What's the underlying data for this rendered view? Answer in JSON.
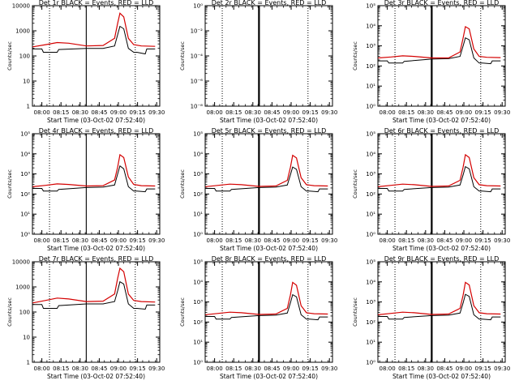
{
  "x_tick_labels": [
    "08:00",
    "08:15",
    "08:30",
    "08:45",
    "09:00",
    "09:15",
    "09:30"
  ],
  "x_tick_hours": [
    8.0,
    8.25,
    8.5,
    8.75,
    9.0,
    9.25,
    9.5
  ],
  "x_range": [
    7.877,
    9.54
  ],
  "solid_line_hour": 8.58,
  "dotted_line_hours": [
    8.1,
    9.22
  ],
  "colors": {
    "events": "#000000",
    "lld": "#d40000"
  },
  "chart_data": [
    {
      "type": "line",
      "title": "Det 1r BLACK = Events, RED = LLD",
      "xlabel": "Start Time (03-Oct-02 07:52:40)",
      "ylabel": "Counts/sec",
      "yscale": "log",
      "ylim": [
        1,
        10000
      ],
      "ytick_labels": [
        "1",
        "10",
        "100",
        "1000",
        "10000"
      ],
      "solid_weight": "thin",
      "series": [
        {
          "name": "Events",
          "x": [
            7.88,
            8.0,
            8.02,
            8.2,
            8.22,
            8.58,
            8.8,
            8.95,
            8.99,
            9.02,
            9.07,
            9.13,
            9.2,
            9.24,
            9.35,
            9.37,
            9.48
          ],
          "y": [
            190,
            190,
            140,
            140,
            180,
            200,
            200,
            250,
            700,
            1500,
            1200,
            200,
            140,
            140,
            120,
            190,
            190
          ]
        },
        {
          "name": "LLD",
          "x": [
            7.88,
            8.05,
            8.2,
            8.35,
            8.58,
            8.8,
            8.95,
            8.99,
            9.02,
            9.07,
            9.13,
            9.2,
            9.3,
            9.48
          ],
          "y": [
            230,
            280,
            340,
            320,
            250,
            260,
            500,
            2000,
            5000,
            3600,
            500,
            280,
            250,
            240
          ]
        }
      ]
    },
    {
      "type": "line",
      "title": "Det 2r BLACK = Events, RED = LLD",
      "xlabel": "Start Time (03-Oct-02 07:52:40)",
      "ylabel": "Counts/sec",
      "yscale": "log",
      "ylim": [
        1,
        1e-08
      ],
      "ytick_labels": [
        "10⁻⁸",
        "10⁻⁶",
        "10⁻⁴",
        "10⁻²",
        "10⁰"
      ],
      "solid_weight": "thick",
      "series": [
        {
          "name": "Events",
          "x": [
            7.88,
            7.93
          ],
          "y": [
            1,
            1
          ]
        },
        {
          "name": "LLD",
          "x": [],
          "y": []
        }
      ]
    },
    {
      "type": "line",
      "title": "Det 3r BLACK = Events, RED = LLD",
      "xlabel": "Start Time (03-Oct-02 07:52:40)",
      "ylabel": "Counts/sec",
      "yscale": "log",
      "ylim": [
        1,
        100000
      ],
      "ytick_labels": [
        "10⁰",
        "10¹",
        "10²",
        "10³",
        "10⁴",
        "10⁵"
      ],
      "solid_weight": "thick",
      "series": [
        {
          "name": "Events",
          "x": [
            7.88,
            8.0,
            8.02,
            8.2,
            8.22,
            8.58,
            8.8,
            8.95,
            8.99,
            9.02,
            9.07,
            9.13,
            9.2,
            9.24,
            9.35,
            9.37,
            9.48
          ],
          "y": [
            180,
            180,
            140,
            140,
            170,
            220,
            230,
            300,
            1000,
            2500,
            2000,
            250,
            140,
            140,
            130,
            180,
            180
          ]
        },
        {
          "name": "LLD",
          "x": [
            7.88,
            8.05,
            8.2,
            8.35,
            8.58,
            8.8,
            8.95,
            8.99,
            9.02,
            9.07,
            9.13,
            9.2,
            9.3,
            9.48
          ],
          "y": [
            250,
            280,
            320,
            300,
            250,
            250,
            500,
            2500,
            9000,
            7000,
            700,
            300,
            270,
            260
          ]
        }
      ]
    },
    {
      "type": "line",
      "title": "Det 4r BLACK = Events, RED = LLD",
      "xlabel": "Start Time (03-Oct-02 07:52:40)",
      "ylabel": "Counts/sec",
      "yscale": "log",
      "ylim": [
        1,
        100000
      ],
      "ytick_labels": [
        "10⁰",
        "10¹",
        "10²",
        "10³",
        "10⁴",
        "10⁵"
      ],
      "solid_weight": "thin",
      "series": [
        {
          "name": "Events",
          "x": [
            7.88,
            8.0,
            8.02,
            8.2,
            8.22,
            8.58,
            8.8,
            8.95,
            8.99,
            9.02,
            9.07,
            9.13,
            9.2,
            9.24,
            9.35,
            9.37,
            9.48
          ],
          "y": [
            190,
            190,
            140,
            140,
            170,
            210,
            220,
            280,
            1000,
            2500,
            1800,
            230,
            140,
            140,
            130,
            180,
            180
          ]
        },
        {
          "name": "LLD",
          "x": [
            7.88,
            8.05,
            8.2,
            8.35,
            8.58,
            8.8,
            8.95,
            8.99,
            9.02,
            9.07,
            9.13,
            9.2,
            9.3,
            9.48
          ],
          "y": [
            230,
            270,
            320,
            300,
            250,
            260,
            500,
            2200,
            9000,
            6500,
            700,
            300,
            260,
            250
          ]
        }
      ]
    },
    {
      "type": "line",
      "title": "Det 5r BLACK = Events, RED = LLD",
      "xlabel": "Start Time (03-Oct-02 07:52:40)",
      "ylabel": "Counts/sec",
      "yscale": "log",
      "ylim": [
        1,
        100000
      ],
      "ytick_labels": [
        "10⁰",
        "10¹",
        "10²",
        "10³",
        "10⁴",
        "10⁵"
      ],
      "solid_weight": "thick",
      "series": [
        {
          "name": "Events",
          "x": [
            7.88,
            8.0,
            8.02,
            8.2,
            8.22,
            8.58,
            8.8,
            8.95,
            8.99,
            9.02,
            9.07,
            9.13,
            9.2,
            9.24,
            9.35,
            9.37,
            9.48
          ],
          "y": [
            190,
            190,
            140,
            140,
            170,
            210,
            220,
            280,
            900,
            2200,
            1700,
            230,
            140,
            140,
            130,
            180,
            180
          ]
        },
        {
          "name": "LLD",
          "x": [
            7.88,
            8.05,
            8.2,
            8.35,
            8.58,
            8.8,
            8.95,
            8.99,
            9.02,
            9.07,
            9.13,
            9.2,
            9.3,
            9.48
          ],
          "y": [
            230,
            270,
            310,
            290,
            240,
            250,
            480,
            2100,
            8500,
            6200,
            650,
            290,
            260,
            250
          ]
        }
      ]
    },
    {
      "type": "line",
      "title": "Det 6r BLACK = Events, RED = LLD",
      "xlabel": "Start Time (03-Oct-02 07:52:40)",
      "ylabel": "Counts/sec",
      "yscale": "log",
      "ylim": [
        1,
        100000
      ],
      "ytick_labels": [
        "10⁰",
        "10¹",
        "10²",
        "10³",
        "10⁴",
        "10⁵"
      ],
      "solid_weight": "thick",
      "series": [
        {
          "name": "Events",
          "x": [
            7.88,
            8.0,
            8.02,
            8.2,
            8.22,
            8.58,
            8.8,
            8.95,
            8.99,
            9.02,
            9.07,
            9.13,
            9.2,
            9.24,
            9.35,
            9.37,
            9.48
          ],
          "y": [
            190,
            190,
            140,
            140,
            170,
            210,
            220,
            280,
            900,
            2300,
            1800,
            230,
            140,
            140,
            130,
            180,
            180
          ]
        },
        {
          "name": "LLD",
          "x": [
            7.88,
            8.05,
            8.2,
            8.35,
            8.58,
            8.8,
            8.95,
            8.99,
            9.02,
            9.07,
            9.13,
            9.2,
            9.3,
            9.48
          ],
          "y": [
            230,
            270,
            310,
            290,
            240,
            250,
            480,
            2200,
            9000,
            6500,
            650,
            290,
            260,
            250
          ]
        }
      ]
    },
    {
      "type": "line",
      "title": "Det 7r BLACK = Events, RED = LLD",
      "xlabel": "Start Time (03-Oct-02 07:52:40)",
      "ylabel": "Counts/sec",
      "yscale": "log",
      "ylim": [
        1,
        10000
      ],
      "ytick_labels": [
        "1",
        "10",
        "100",
        "1000",
        "10000"
      ],
      "solid_weight": "thin",
      "series": [
        {
          "name": "Events",
          "x": [
            7.88,
            8.0,
            8.02,
            8.2,
            8.22,
            8.58,
            8.8,
            8.95,
            8.99,
            9.02,
            9.07,
            9.13,
            9.2,
            9.24,
            9.35,
            9.37,
            9.48
          ],
          "y": [
            200,
            200,
            140,
            140,
            180,
            210,
            210,
            260,
            700,
            1600,
            1300,
            210,
            140,
            140,
            130,
            190,
            190
          ]
        },
        {
          "name": "LLD",
          "x": [
            7.88,
            8.05,
            8.2,
            8.35,
            8.58,
            8.8,
            8.95,
            8.99,
            9.02,
            9.07,
            9.13,
            9.2,
            9.3,
            9.48
          ],
          "y": [
            230,
            290,
            360,
            330,
            260,
            270,
            520,
            2200,
            5500,
            4000,
            520,
            290,
            260,
            250
          ]
        }
      ]
    },
    {
      "type": "line",
      "title": "Det 8r BLACK = Events, RED = LLD",
      "xlabel": "Start Time (03-Oct-02 07:52:40)",
      "ylabel": "Counts/sec",
      "yscale": "log",
      "ylim": [
        1,
        100000
      ],
      "ytick_labels": [
        "10⁰",
        "10¹",
        "10²",
        "10³",
        "10⁴",
        "10⁵"
      ],
      "solid_weight": "thick",
      "series": [
        {
          "name": "Events",
          "x": [
            7.88,
            8.0,
            8.02,
            8.2,
            8.22,
            8.58,
            8.8,
            8.95,
            8.99,
            9.02,
            9.07,
            9.13,
            9.2,
            9.24,
            9.35,
            9.37,
            9.48
          ],
          "y": [
            190,
            190,
            140,
            140,
            170,
            210,
            220,
            280,
            900,
            2300,
            1800,
            230,
            140,
            140,
            130,
            180,
            180
          ]
        },
        {
          "name": "LLD",
          "x": [
            7.88,
            8.05,
            8.2,
            8.35,
            8.58,
            8.8,
            8.95,
            8.99,
            9.02,
            9.07,
            9.13,
            9.2,
            9.3,
            9.48
          ],
          "y": [
            230,
            270,
            310,
            290,
            240,
            250,
            480,
            2200,
            9500,
            6800,
            650,
            290,
            260,
            250
          ]
        }
      ]
    },
    {
      "type": "line",
      "title": "Det 9r BLACK = Events, RED = LLD",
      "xlabel": "Start Time (03-Oct-02 07:52:40)",
      "ylabel": "Counts/sec",
      "yscale": "log",
      "ylim": [
        1,
        100000
      ],
      "ytick_labels": [
        "10⁰",
        "10¹",
        "10²",
        "10³",
        "10⁴",
        "10⁵"
      ],
      "solid_weight": "thick",
      "series": [
        {
          "name": "Events",
          "x": [
            7.88,
            8.0,
            8.02,
            8.2,
            8.22,
            8.58,
            8.8,
            8.95,
            8.99,
            9.02,
            9.07,
            9.13,
            9.2,
            9.24,
            9.35,
            9.37,
            9.48
          ],
          "y": [
            190,
            190,
            140,
            140,
            170,
            210,
            220,
            280,
            900,
            2400,
            1900,
            230,
            140,
            140,
            130,
            180,
            180
          ]
        },
        {
          "name": "LLD",
          "x": [
            7.88,
            8.05,
            8.2,
            8.35,
            8.58,
            8.8,
            8.95,
            8.99,
            9.02,
            9.07,
            9.13,
            9.2,
            9.3,
            9.48
          ],
          "y": [
            230,
            270,
            310,
            290,
            240,
            250,
            480,
            2200,
            9500,
            7000,
            650,
            290,
            260,
            250
          ]
        }
      ]
    }
  ]
}
